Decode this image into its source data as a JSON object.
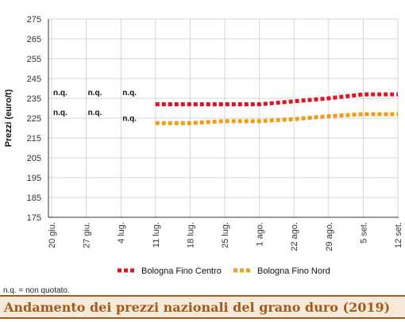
{
  "chart_data": {
    "type": "line",
    "ylabel": "Prezzi (euro/t)",
    "ylim": [
      175,
      275
    ],
    "yticks": [
      175,
      185,
      195,
      205,
      215,
      225,
      235,
      245,
      255,
      265,
      275
    ],
    "categories": [
      "20 giu.",
      "27 giu.",
      "4 lug.",
      "11 lug.",
      "18 lug.",
      "25 lug.",
      "1 ago.",
      "22 ago.",
      "29 ago.",
      "5 set.",
      "12 set."
    ],
    "grid": true,
    "legend": "bottom",
    "series": [
      {
        "name": "Bologna Fino Centro",
        "color": "#e0141e",
        "values": [
          null,
          null,
          null,
          232,
          232,
          232,
          232,
          233.5,
          235,
          237,
          237
        ]
      },
      {
        "name": "Bologna Fino Nord",
        "color": "#f39c12",
        "values": [
          null,
          null,
          null,
          222.5,
          222.5,
          223.5,
          223.5,
          224.5,
          226,
          227,
          227
        ]
      }
    ],
    "annotations": [
      {
        "text": "n.q.",
        "category_index": 0,
        "y": 235
      },
      {
        "text": "n.q.",
        "category_index": 1,
        "y": 235
      },
      {
        "text": "n.q.",
        "category_index": 2,
        "y": 235
      },
      {
        "text": "n.q.",
        "category_index": 0,
        "y": 225
      },
      {
        "text": "n.q.",
        "category_index": 1,
        "y": 225
      },
      {
        "text": "n.q.",
        "category_index": 2,
        "y": 222
      }
    ]
  },
  "footnote": "n.q. = non quotato.",
  "title": "Andamento dei prezzi nazionali del grano duro (2019)"
}
